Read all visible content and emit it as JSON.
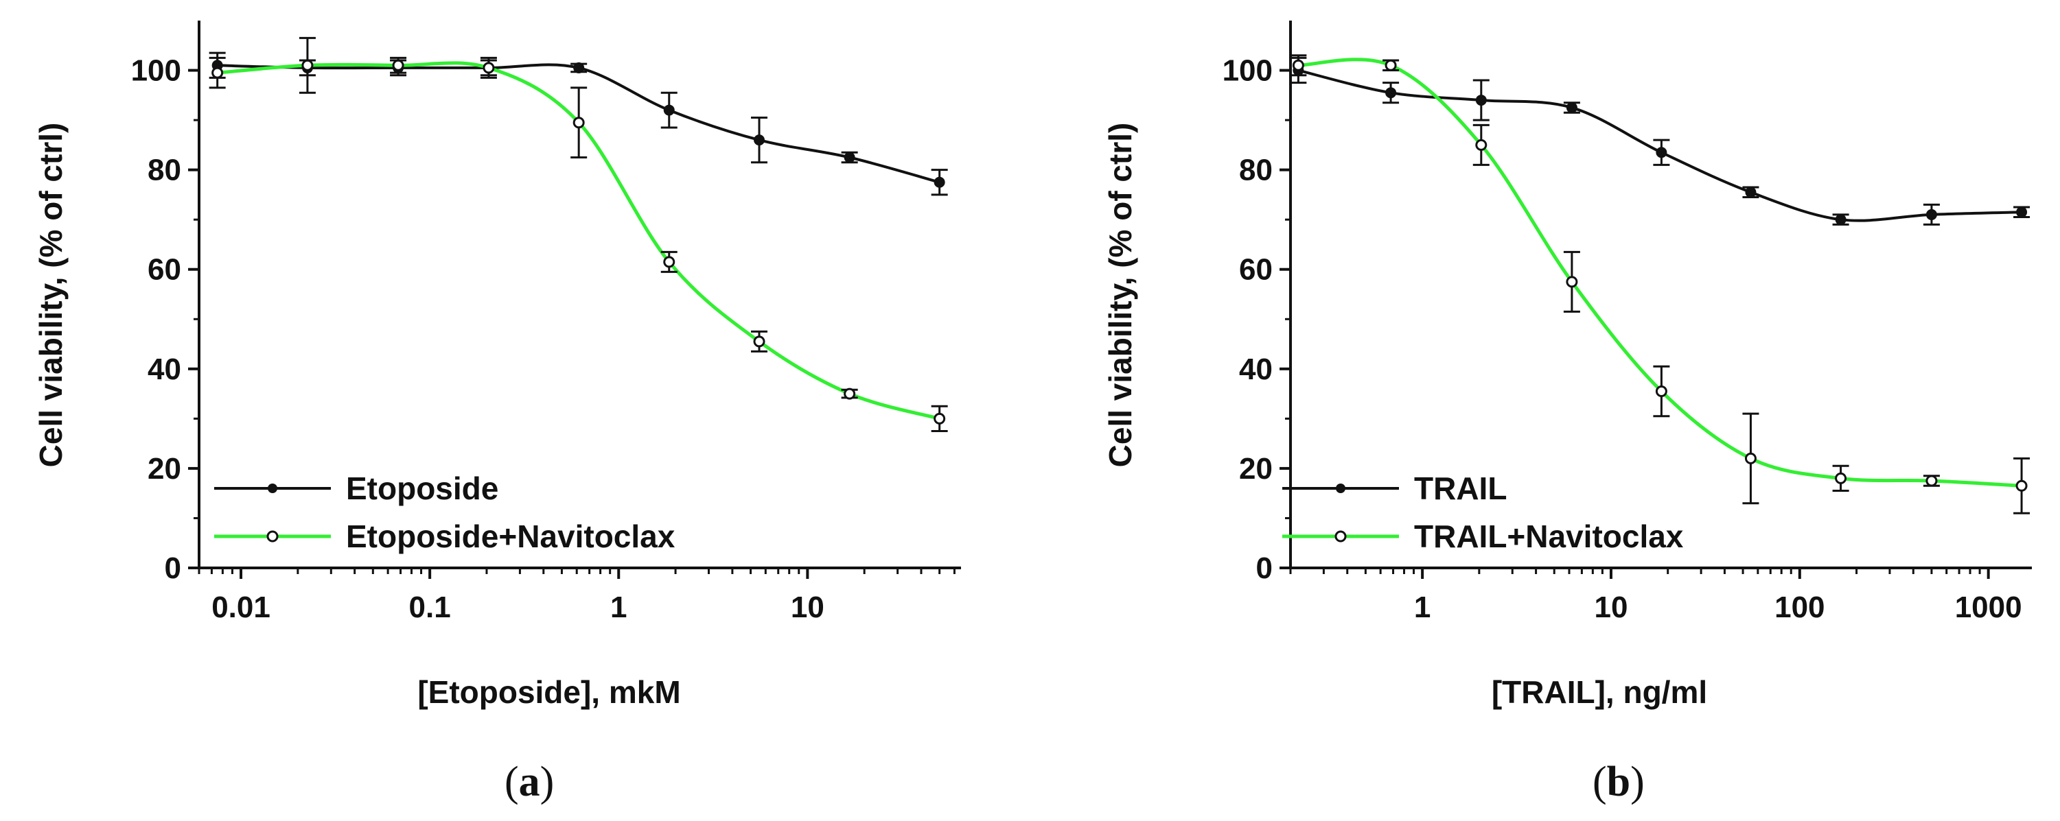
{
  "chart_data": [
    {
      "type": "line",
      "panel_label": {
        "open": "(",
        "letter": "a",
        "close": ")"
      },
      "xscale": "log",
      "xlim": [
        0.006,
        65
      ],
      "ylim": [
        0,
        110
      ],
      "xlabel": "[Etoposide], mkM",
      "ylabel": "Cell viability, (% of ctrl)",
      "xticks": [
        {
          "value": 0.01,
          "label": "0.01"
        },
        {
          "value": 0.1,
          "label": "0.1"
        },
        {
          "value": 1,
          "label": "1"
        },
        {
          "value": 10,
          "label": "10"
        }
      ],
      "yticks": [
        {
          "value": 0,
          "label": "0"
        },
        {
          "value": 20,
          "label": "20"
        },
        {
          "value": 40,
          "label": "40"
        },
        {
          "value": 60,
          "label": "60"
        },
        {
          "value": 80,
          "label": "80"
        },
        {
          "value": 100,
          "label": "100"
        }
      ],
      "legend_position": "bottom-left",
      "series": [
        {
          "name": "Etoposide",
          "color": "#111111",
          "marker": "filled-circle",
          "x": [
            0.0075,
            0.0225,
            0.068,
            0.205,
            0.615,
            1.85,
            5.55,
            16.7,
            50
          ],
          "y": [
            101,
            100.5,
            100.5,
            100.5,
            100.5,
            92,
            86,
            82.5,
            77.5
          ],
          "err": [
            2.5,
            1.5,
            1.5,
            1.5,
            0.8,
            3.5,
            4.5,
            1,
            2.5
          ]
        },
        {
          "name": "Etoposide+Navitoclax",
          "color": "#33ee33",
          "marker": "open-circle",
          "x": [
            0.0075,
            0.0225,
            0.068,
            0.205,
            0.615,
            1.85,
            5.55,
            16.7,
            50
          ],
          "y": [
            99.5,
            101,
            101,
            100.5,
            89.5,
            61.5,
            45.5,
            35,
            30
          ],
          "err": [
            3,
            5.5,
            1.5,
            2,
            7,
            2,
            2,
            0.8,
            2.5
          ]
        }
      ]
    },
    {
      "type": "line",
      "panel_label": {
        "open": "(",
        "letter": "b",
        "close": ")"
      },
      "xscale": "log",
      "xlim": [
        0.2,
        1700
      ],
      "ylim": [
        0,
        110
      ],
      "xlabel": "[TRAIL], ng/ml",
      "ylabel": "Cell viability, (% of ctrl)",
      "xticks": [
        {
          "value": 1,
          "label": "1"
        },
        {
          "value": 10,
          "label": "10"
        },
        {
          "value": 100,
          "label": "100"
        },
        {
          "value": 1000,
          "label": "1000"
        }
      ],
      "yticks": [
        {
          "value": 0,
          "label": "0"
        },
        {
          "value": 20,
          "label": "20"
        },
        {
          "value": 40,
          "label": "40"
        },
        {
          "value": 60,
          "label": "60"
        },
        {
          "value": 80,
          "label": "80"
        },
        {
          "value": 100,
          "label": "100"
        }
      ],
      "legend_position": "bottom-left",
      "series": [
        {
          "name": "TRAIL",
          "color": "#111111",
          "marker": "filled-circle",
          "x": [
            0.22,
            0.68,
            2.05,
            6.2,
            18.5,
            55,
            165,
            500,
            1500
          ],
          "y": [
            100,
            95.5,
            94,
            92.5,
            83.5,
            75.5,
            70,
            71,
            71.5
          ],
          "err": [
            2.5,
            2,
            4,
            1,
            2.5,
            1,
            1,
            2,
            1
          ]
        },
        {
          "name": "TRAIL+Navitoclax",
          "color": "#33ee33",
          "marker": "open-circle",
          "x": [
            0.22,
            0.68,
            2.05,
            6.2,
            18.5,
            55,
            165,
            500,
            1500
          ],
          "y": [
            101,
            101,
            85,
            57.5,
            35.5,
            22,
            18,
            17.5,
            16.5
          ],
          "err": [
            2,
            1,
            4,
            6,
            5,
            9,
            2.5,
            1,
            5.5
          ]
        }
      ]
    }
  ]
}
